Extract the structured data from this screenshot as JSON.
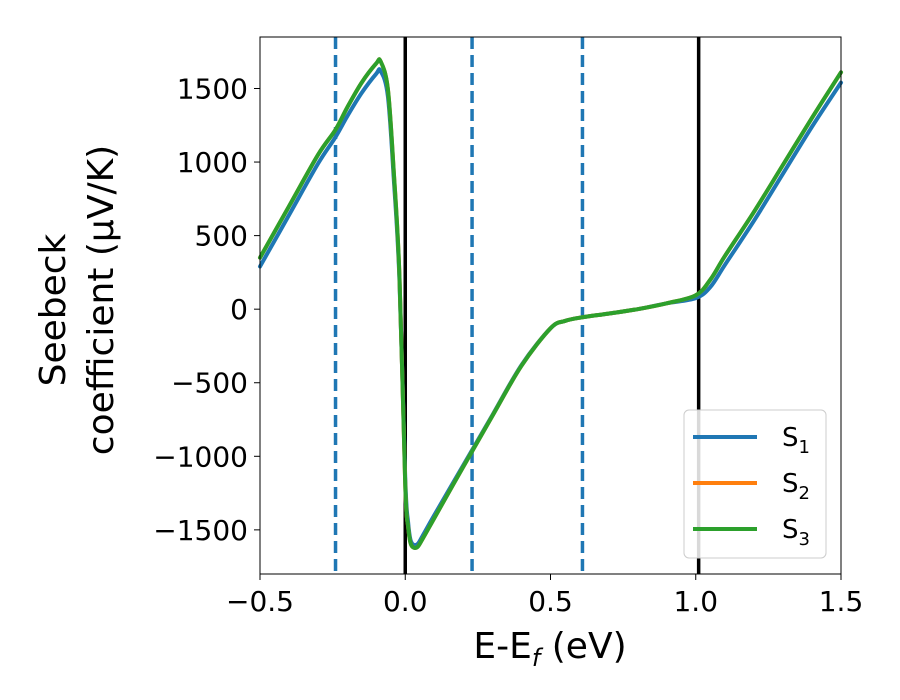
{
  "chart_data": {
    "type": "line",
    "title": "",
    "xlabel_main": "E-E",
    "xlabel_sub": "f",
    "xlabel_unit": " (eV)",
    "ylabel_line1": "Seebeck",
    "ylabel_line2": "coefficient  (μV/K)",
    "xlim": [
      -0.5,
      1.5
    ],
    "ylim": [
      -1800,
      1850
    ],
    "xticks": [
      -0.5,
      0.0,
      0.5,
      1.0,
      1.5
    ],
    "xtick_labels": [
      "−0.5",
      "0.0",
      "0.5",
      "1.0",
      "1.5"
    ],
    "yticks": [
      -1500,
      -1000,
      -500,
      0,
      500,
      1000,
      1500
    ],
    "ytick_labels": [
      "−1500",
      "−1000",
      "−500",
      "0",
      "500",
      "1000",
      "1500"
    ],
    "grid": false,
    "legend_position": "bottom-right",
    "vlines_solid": [
      0.0,
      1.01
    ],
    "vlines_dashed": [
      -0.24,
      0.23,
      0.61
    ],
    "colors": {
      "solid_vline": "#000000",
      "dashed_vline": "#1f77b4"
    },
    "series": [
      {
        "name_main": "S",
        "name_sub": "1",
        "color": "#1f77b4",
        "x": [
          -0.5,
          -0.4,
          -0.3,
          -0.24,
          -0.2,
          -0.15,
          -0.1,
          -0.085,
          -0.06,
          -0.04,
          -0.02,
          0.0,
          0.01,
          0.02,
          0.04,
          0.06,
          0.1,
          0.2,
          0.3,
          0.4,
          0.5,
          0.55,
          0.61,
          0.7,
          0.8,
          0.9,
          1.0,
          1.05,
          1.1,
          1.2,
          1.3,
          1.4,
          1.5
        ],
        "y": [
          290,
          640,
          990,
          1170,
          1310,
          1470,
          1600,
          1620,
          1450,
          900,
          200,
          -1150,
          -1450,
          -1580,
          -1600,
          -1540,
          -1400,
          -1060,
          -720,
          -380,
          -130,
          -80,
          -55,
          -30,
          0,
          40,
          75,
          150,
          300,
          600,
          920,
          1240,
          1540
        ]
      },
      {
        "name_main": "S",
        "name_sub": "2",
        "color": "#ff7f0e",
        "x": [
          -0.5,
          -0.4,
          -0.3,
          -0.24,
          -0.2,
          -0.15,
          -0.1,
          -0.085,
          -0.06,
          -0.04,
          -0.02,
          0.0,
          0.01,
          0.02,
          0.04,
          0.06,
          0.1,
          0.2,
          0.3,
          0.4,
          0.5,
          0.55,
          0.61,
          0.7,
          0.8,
          0.9,
          1.0,
          1.05,
          1.1,
          1.2,
          1.3,
          1.4,
          1.5
        ],
        "y": [
          350,
          700,
          1050,
          1220,
          1370,
          1540,
          1670,
          1685,
          1500,
          950,
          230,
          -1200,
          -1480,
          -1600,
          -1620,
          -1560,
          -1420,
          -1070,
          -725,
          -385,
          -130,
          -80,
          -55,
          -30,
          0,
          40,
          95,
          200,
          360,
          660,
          980,
          1300,
          1610
        ]
      },
      {
        "name_main": "S",
        "name_sub": "3",
        "color": "#2ca02c",
        "x": [
          -0.5,
          -0.4,
          -0.3,
          -0.24,
          -0.2,
          -0.15,
          -0.1,
          -0.085,
          -0.06,
          -0.04,
          -0.02,
          0.0,
          0.01,
          0.02,
          0.04,
          0.06,
          0.1,
          0.2,
          0.3,
          0.4,
          0.5,
          0.55,
          0.61,
          0.7,
          0.8,
          0.9,
          1.0,
          1.05,
          1.1,
          1.2,
          1.3,
          1.4,
          1.5
        ],
        "y": [
          350,
          700,
          1050,
          1220,
          1370,
          1540,
          1670,
          1685,
          1500,
          950,
          230,
          -1200,
          -1480,
          -1600,
          -1620,
          -1560,
          -1420,
          -1070,
          -725,
          -385,
          -130,
          -80,
          -55,
          -30,
          0,
          40,
          95,
          200,
          360,
          660,
          980,
          1300,
          1610
        ]
      }
    ]
  }
}
